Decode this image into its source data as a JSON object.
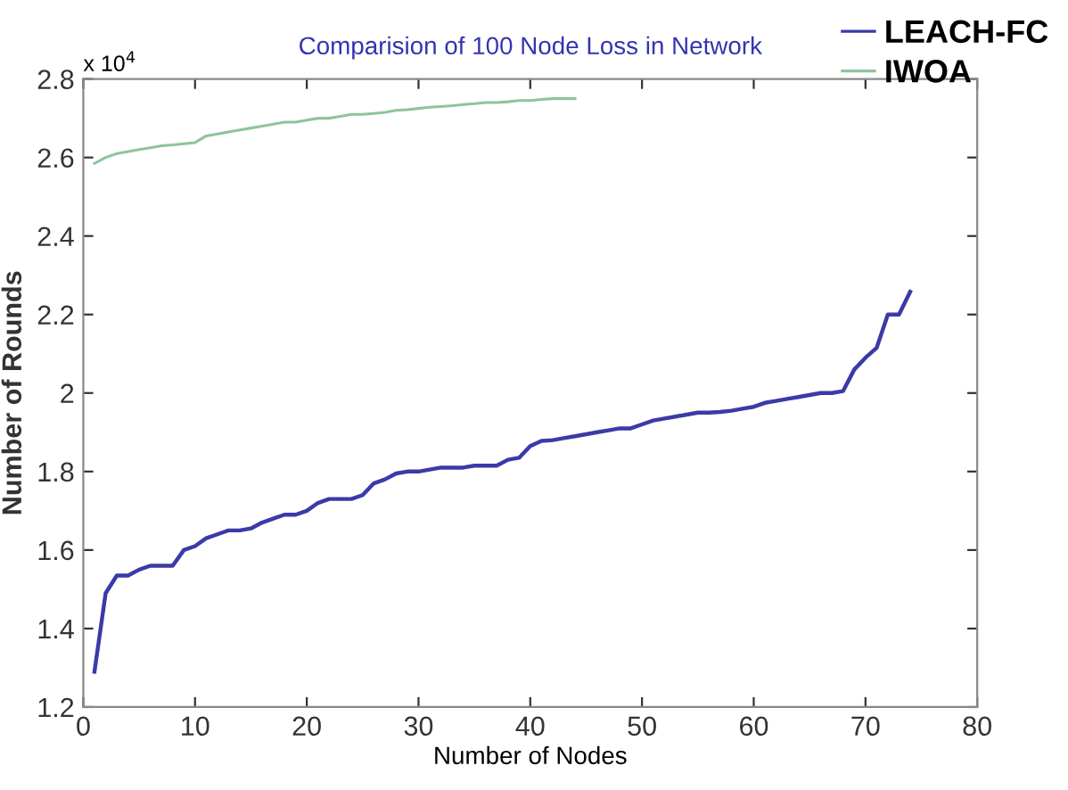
{
  "chart_data": {
    "type": "line",
    "title": "Comparision of 100 Node Loss in Network",
    "xlabel": "Number of Nodes",
    "ylabel": "Number of Rounds",
    "annotations": [
      "x 10$^{4}$"
    ],
    "xlim": [
      0,
      80
    ],
    "xticks": [
      0,
      10,
      20,
      30,
      40,
      50,
      60,
      70,
      80
    ],
    "ylim": [
      1.2,
      2.8
    ],
    "yticks": [
      1.2,
      1.4,
      1.6,
      1.8,
      2,
      2.2,
      2.4,
      2.6,
      2.8
    ],
    "grid": false,
    "legend": "top right",
    "marker": "none",
    "line_style": "solid",
    "series": [
      {
        "name": "LEACH-FC",
        "color": "#3a3aa8",
        "x": [
          1,
          2,
          3,
          4,
          5,
          6,
          7,
          8,
          9,
          10,
          11,
          12,
          13,
          14,
          15,
          16,
          17,
          18,
          19,
          20,
          21,
          22,
          23,
          24,
          25,
          26,
          27,
          28,
          29,
          30,
          31,
          32,
          33,
          34,
          35,
          36,
          37,
          38,
          39,
          40,
          41,
          42,
          43,
          44,
          45,
          46,
          47,
          48,
          49,
          50,
          51,
          52,
          53,
          54,
          55,
          56,
          57,
          58,
          59,
          60,
          61,
          62,
          63,
          64,
          65,
          66,
          67,
          68,
          69,
          70,
          71,
          72,
          73,
          74
        ],
        "values": [
          1.29,
          1.49,
          1.535,
          1.535,
          1.55,
          1.56,
          1.56,
          1.56,
          1.6,
          1.61,
          1.63,
          1.64,
          1.65,
          1.65,
          1.655,
          1.67,
          1.68,
          1.69,
          1.69,
          1.7,
          1.72,
          1.73,
          1.73,
          1.73,
          1.74,
          1.77,
          1.78,
          1.795,
          1.8,
          1.8,
          1.805,
          1.81,
          1.81,
          1.81,
          1.815,
          1.815,
          1.815,
          1.83,
          1.835,
          1.865,
          1.878,
          1.88,
          1.885,
          1.89,
          1.895,
          1.9,
          1.905,
          1.91,
          1.91,
          1.92,
          1.93,
          1.935,
          1.94,
          1.945,
          1.95,
          1.95,
          1.952,
          1.955,
          1.96,
          1.965,
          1.975,
          1.98,
          1.985,
          1.99,
          1.995,
          2.0,
          2.0,
          2.005,
          2.06,
          2.09,
          2.115,
          2.2,
          2.2,
          2.258
        ]
      },
      {
        "name": "IWOA",
        "color": "#8fc49a",
        "x": [
          1,
          2,
          3,
          4,
          5,
          6,
          7,
          8,
          9,
          10,
          11,
          12,
          13,
          14,
          15,
          16,
          17,
          18,
          19,
          20,
          21,
          22,
          23,
          24,
          25,
          26,
          27,
          28,
          29,
          30,
          31,
          32,
          33,
          34,
          35,
          36,
          37,
          38,
          39,
          40,
          41,
          42,
          43,
          44
        ],
        "values": [
          2.585,
          2.6,
          2.61,
          2.615,
          2.62,
          2.625,
          2.63,
          2.632,
          2.635,
          2.638,
          2.655,
          2.66,
          2.665,
          2.67,
          2.675,
          2.68,
          2.685,
          2.69,
          2.69,
          2.695,
          2.7,
          2.7,
          2.705,
          2.71,
          2.71,
          2.712,
          2.715,
          2.72,
          2.722,
          2.725,
          2.728,
          2.73,
          2.732,
          2.735,
          2.737,
          2.74,
          2.74,
          2.742,
          2.745,
          2.745,
          2.748,
          2.75,
          2.75,
          2.75
        ]
      }
    ]
  }
}
